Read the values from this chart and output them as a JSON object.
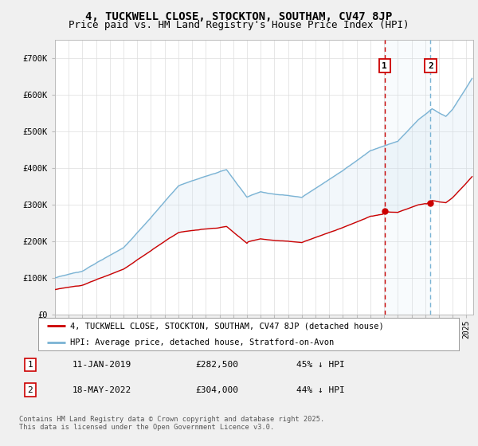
{
  "title": "4, TUCKWELL CLOSE, STOCKTON, SOUTHAM, CV47 8JP",
  "subtitle": "Price paid vs. HM Land Registry's House Price Index (HPI)",
  "ylim": [
    0,
    750000
  ],
  "yticks": [
    0,
    100000,
    200000,
    300000,
    400000,
    500000,
    600000,
    700000
  ],
  "ytick_labels": [
    "£0",
    "£100K",
    "£200K",
    "£300K",
    "£400K",
    "£500K",
    "£600K",
    "£700K"
  ],
  "hpi_color": "#7ab3d4",
  "price_color": "#cc0000",
  "vline1_color": "#cc0000",
  "vline2_color": "#7ab3d4",
  "annotation_box_color": "#cc0000",
  "shade_color": "#cce0f0",
  "legend_label_price": "4, TUCKWELL CLOSE, STOCKTON, SOUTHAM, CV47 8JP (detached house)",
  "legend_label_hpi": "HPI: Average price, detached house, Stratford-on-Avon",
  "annotation1_date": "11-JAN-2019",
  "annotation1_price": "£282,500",
  "annotation1_pct": "45% ↓ HPI",
  "annotation2_date": "18-MAY-2022",
  "annotation2_price": "£304,000",
  "annotation2_pct": "44% ↓ HPI",
  "footer": "Contains HM Land Registry data © Crown copyright and database right 2025.\nThis data is licensed under the Open Government Licence v3.0.",
  "purchase1_year": 2019.04,
  "purchase1_price": 282500,
  "purchase2_year": 2022.38,
  "purchase2_price": 304000,
  "background_color": "#f0f0f0",
  "plot_bg_color": "#ffffff",
  "title_fontsize": 10,
  "subtitle_fontsize": 9
}
